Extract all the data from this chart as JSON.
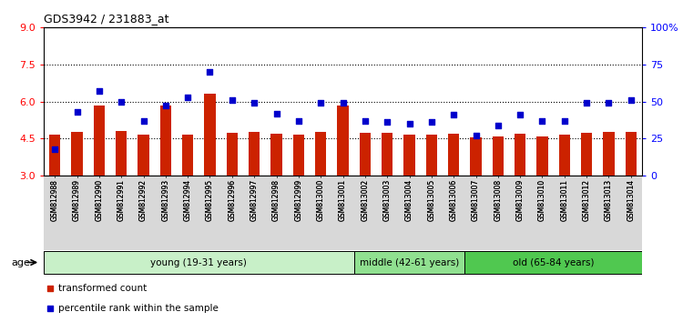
{
  "title": "GDS3942 / 231883_at",
  "samples": [
    "GSM812988",
    "GSM812989",
    "GSM812990",
    "GSM812991",
    "GSM812992",
    "GSM812993",
    "GSM812994",
    "GSM812995",
    "GSM812996",
    "GSM812997",
    "GSM812998",
    "GSM812999",
    "GSM813000",
    "GSM813001",
    "GSM813002",
    "GSM813003",
    "GSM813004",
    "GSM813005",
    "GSM813006",
    "GSM813007",
    "GSM813008",
    "GSM813009",
    "GSM813010",
    "GSM813011",
    "GSM813012",
    "GSM813013",
    "GSM813014"
  ],
  "red_values": [
    4.65,
    4.75,
    5.85,
    4.8,
    4.65,
    5.82,
    4.65,
    6.3,
    4.72,
    4.75,
    4.7,
    4.65,
    4.75,
    5.85,
    4.72,
    4.72,
    4.65,
    4.65,
    4.68,
    4.55,
    4.6,
    4.68,
    4.6,
    4.65,
    4.72,
    4.75,
    4.78
  ],
  "percentile_right": [
    18,
    43,
    57,
    50,
    37,
    47,
    53,
    70,
    51,
    49,
    42,
    37,
    49,
    49,
    37,
    36,
    35,
    36,
    41,
    27,
    34,
    41,
    37,
    37,
    49,
    49,
    51
  ],
  "groups": [
    {
      "label": "young (19-31 years)",
      "start": 0,
      "end": 13,
      "color": "#c8f0c8"
    },
    {
      "label": "middle (42-61 years)",
      "start": 14,
      "end": 18,
      "color": "#90e090"
    },
    {
      "label": "old (65-84 years)",
      "start": 19,
      "end": 26,
      "color": "#50c850"
    }
  ],
  "ylim_left": [
    3,
    9
  ],
  "ylim_right": [
    0,
    100
  ],
  "yticks_left": [
    3,
    4.5,
    6,
    7.5,
    9
  ],
  "yticks_right": [
    0,
    25,
    50,
    75,
    100
  ],
  "ytick_labels_right": [
    "0",
    "25",
    "50",
    "75",
    "100%"
  ],
  "hlines": [
    4.5,
    6.0,
    7.5
  ],
  "bar_color": "#cc2200",
  "dot_color": "#0000cc",
  "bar_base": 3,
  "legend": [
    {
      "label": "transformed count",
      "color": "#cc2200"
    },
    {
      "label": "percentile rank within the sample",
      "color": "#0000cc"
    }
  ],
  "age_label": "age"
}
